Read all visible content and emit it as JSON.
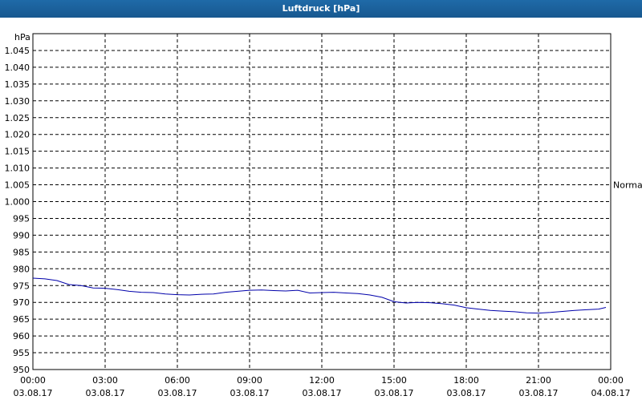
{
  "window": {
    "title": "Luftdruck [hPa]"
  },
  "chart_data": {
    "type": "line",
    "title": "Luftdruck [hPa]",
    "ylabel": "hPa",
    "xlabel": "",
    "ylim": [
      950,
      1050
    ],
    "yticks": [
      950,
      955,
      960,
      965,
      970,
      975,
      980,
      985,
      990,
      995,
      1000,
      1005,
      1010,
      1015,
      1020,
      1025,
      1030,
      1035,
      1040,
      1045
    ],
    "ytick_labels": [
      "950",
      "955",
      "960",
      "965",
      "970",
      "975",
      "980",
      "985",
      "990",
      "995",
      "1.000",
      "1.005",
      "1.010",
      "1.015",
      "1.020",
      "1.025",
      "1.030",
      "1.035",
      "1.040",
      "1.045"
    ],
    "xlim": [
      0,
      24
    ],
    "xticks": [
      {
        "x": 0,
        "time": "00:00",
        "date": "03.08.17"
      },
      {
        "x": 3,
        "time": "03:00",
        "date": "03.08.17"
      },
      {
        "x": 6,
        "time": "06:00",
        "date": "03.08.17"
      },
      {
        "x": 9,
        "time": "09:00",
        "date": "03.08.17"
      },
      {
        "x": 12,
        "time": "12:00",
        "date": "03.08.17"
      },
      {
        "x": 15,
        "time": "15:00",
        "date": "03.08.17"
      },
      {
        "x": 18,
        "time": "18:00",
        "date": "03.08.17"
      },
      {
        "x": 21,
        "time": "21:00",
        "date": "03.08.17"
      },
      {
        "x": 24,
        "time": "00:00",
        "date": "04.08.17"
      }
    ],
    "reference_line": {
      "value": 1005,
      "label": "Normal"
    },
    "grid": true,
    "series": [
      {
        "color": "#0000aa",
        "x": [
          0,
          0.5,
          1,
          1.5,
          2,
          2.5,
          3,
          3.5,
          4,
          4.5,
          5,
          5.5,
          6,
          6.5,
          7,
          7.5,
          8,
          8.5,
          9,
          9.5,
          10,
          10.5,
          11,
          11.5,
          12,
          12.5,
          13,
          13.5,
          14,
          14.5,
          15,
          15.5,
          16,
          16.5,
          17,
          17.5,
          18,
          18.5,
          19,
          19.5,
          20,
          20.5,
          21,
          21.5,
          22,
          22.5,
          23,
          23.5,
          23.8
        ],
        "values": [
          977.2,
          977.0,
          976.5,
          975.3,
          975.0,
          974.3,
          974.2,
          973.8,
          973.3,
          973.0,
          972.9,
          972.5,
          972.3,
          972.2,
          972.4,
          972.5,
          973.0,
          973.3,
          973.6,
          973.7,
          973.5,
          973.4,
          973.6,
          972.8,
          972.9,
          973.0,
          972.8,
          972.6,
          972.2,
          971.5,
          970.2,
          969.8,
          970.0,
          969.9,
          969.6,
          969.2,
          968.4,
          968.0,
          967.6,
          967.4,
          967.2,
          966.9,
          966.8,
          967.0,
          967.3,
          967.6,
          967.8,
          968.0,
          968.5
        ]
      }
    ]
  }
}
